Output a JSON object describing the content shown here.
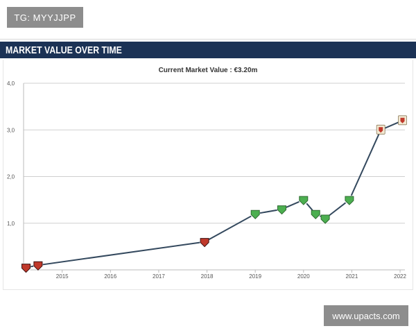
{
  "watermark_top": "TG: MYYJJPP",
  "watermark_bottom": "www.upacts.com",
  "section": {
    "title": "MARKET VALUE OVER TIME"
  },
  "colors": {
    "header_bg": "#1b3255",
    "line": "#34495e",
    "grid": "#cfcfcf",
    "marker_red": "#c0392b",
    "marker_green": "#4caf50",
    "marker_cream": "#f3e9d2"
  },
  "chart_data": {
    "type": "line",
    "title": "Current Market Value : €3.20m",
    "xlabel": "",
    "ylabel": "",
    "ylim": [
      0,
      4
    ],
    "xlim": [
      2014.2,
      2022.1
    ],
    "yticks": [
      "4,0",
      "3,0",
      "2,0",
      "1,0"
    ],
    "ytick_values": [
      4,
      3,
      2,
      1
    ],
    "xticks": [
      "2015",
      "2016",
      "2017",
      "2018",
      "2019",
      "2020",
      "2021",
      "2022"
    ],
    "xtick_values": [
      2015,
      2016,
      2017,
      2018,
      2019,
      2020,
      2021,
      2022
    ],
    "grid": true,
    "series": [
      {
        "values": [
          {
            "x": 2014.25,
            "y": 0.05,
            "club_icon": "red-crest"
          },
          {
            "x": 2014.5,
            "y": 0.1,
            "club_icon": "red-crest"
          },
          {
            "x": 2017.95,
            "y": 0.6,
            "club_icon": "red-crest"
          },
          {
            "x": 2019.0,
            "y": 1.2,
            "club_icon": "green-crest"
          },
          {
            "x": 2019.55,
            "y": 1.3,
            "club_icon": "green-crest"
          },
          {
            "x": 2020.0,
            "y": 1.5,
            "club_icon": "green-crest"
          },
          {
            "x": 2020.25,
            "y": 1.2,
            "club_icon": "green-crest"
          },
          {
            "x": 2020.45,
            "y": 1.1,
            "club_icon": "green-crest"
          },
          {
            "x": 2020.95,
            "y": 1.5,
            "club_icon": "green-crest"
          },
          {
            "x": 2021.6,
            "y": 3.0,
            "club_icon": "cream-crest"
          },
          {
            "x": 2022.05,
            "y": 3.2,
            "club_icon": "cream-crest"
          }
        ]
      }
    ]
  }
}
